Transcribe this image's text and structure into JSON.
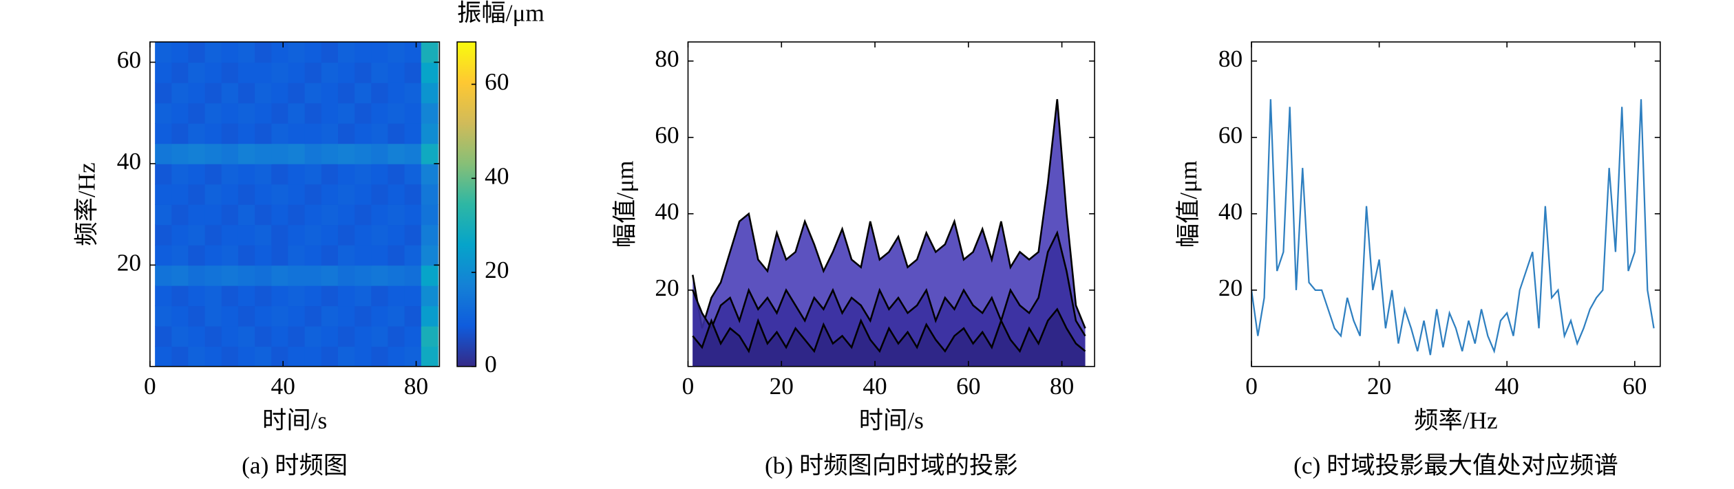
{
  "chart_data": [
    {
      "type": "heatmap",
      "caption": "(a) 时频图",
      "xlabel": "时间/s",
      "ylabel": "频率/Hz",
      "xlim": [
        0,
        87
      ],
      "ylim": [
        0,
        64
      ],
      "xticks": [
        0,
        40,
        80
      ],
      "yticks": [
        20,
        40,
        60
      ],
      "x": [
        4,
        9,
        14,
        19,
        24,
        29,
        34,
        39,
        44,
        49,
        54,
        59,
        64,
        69,
        74,
        79,
        84
      ],
      "y": [
        2,
        6,
        10,
        14,
        18,
        22,
        26,
        30,
        34,
        38,
        42,
        46,
        50,
        54,
        58,
        62
      ],
      "z": [
        [
          9,
          8,
          10,
          9,
          8,
          9,
          10,
          8,
          9,
          9,
          8,
          10,
          9,
          8,
          9,
          10,
          28
        ],
        [
          8,
          10,
          9,
          8,
          9,
          10,
          8,
          9,
          8,
          10,
          9,
          8,
          9,
          10,
          8,
          9,
          30
        ],
        [
          10,
          9,
          8,
          10,
          9,
          8,
          9,
          10,
          9,
          8,
          10,
          9,
          8,
          9,
          10,
          8,
          24
        ],
        [
          9,
          8,
          9,
          10,
          8,
          9,
          8,
          9,
          10,
          9,
          8,
          9,
          10,
          8,
          9,
          9,
          20
        ],
        [
          14,
          15,
          13,
          14,
          15,
          14,
          13,
          15,
          14,
          14,
          15,
          13,
          14,
          15,
          14,
          13,
          26
        ],
        [
          9,
          10,
          8,
          9,
          10,
          8,
          9,
          8,
          10,
          9,
          8,
          10,
          9,
          9,
          8,
          10,
          18
        ],
        [
          8,
          9,
          10,
          8,
          9,
          9,
          10,
          8,
          9,
          10,
          9,
          8,
          9,
          10,
          9,
          8,
          16
        ],
        [
          10,
          8,
          9,
          9,
          8,
          10,
          8,
          9,
          8,
          9,
          10,
          9,
          8,
          9,
          10,
          9,
          14
        ],
        [
          9,
          9,
          8,
          10,
          9,
          8,
          9,
          10,
          9,
          8,
          9,
          10,
          9,
          8,
          9,
          8,
          15
        ],
        [
          8,
          10,
          9,
          8,
          10,
          9,
          10,
          8,
          9,
          10,
          8,
          9,
          10,
          9,
          8,
          10,
          17
        ],
        [
          15,
          16,
          17,
          16,
          15,
          17,
          16,
          16,
          17,
          15,
          16,
          17,
          16,
          15,
          17,
          16,
          28
        ],
        [
          9,
          8,
          10,
          9,
          8,
          9,
          8,
          10,
          9,
          9,
          10,
          8,
          9,
          10,
          8,
          9,
          20
        ],
        [
          10,
          9,
          8,
          10,
          9,
          10,
          9,
          8,
          10,
          8,
          9,
          10,
          8,
          9,
          10,
          9,
          18
        ],
        [
          8,
          10,
          9,
          8,
          10,
          8,
          10,
          9,
          8,
          10,
          9,
          8,
          10,
          8,
          9,
          10,
          22
        ],
        [
          9,
          8,
          10,
          9,
          8,
          9,
          9,
          10,
          9,
          8,
          10,
          9,
          8,
          10,
          9,
          8,
          26
        ],
        [
          10,
          9,
          8,
          10,
          9,
          10,
          8,
          9,
          10,
          9,
          8,
          10,
          9,
          9,
          10,
          9,
          30
        ]
      ],
      "colormap": [
        "#352a87",
        "#0f5cdd",
        "#1481d6",
        "#06a4ca",
        "#2eb7a4",
        "#87bf77",
        "#d1bb59",
        "#fec832",
        "#f9fb0e"
      ],
      "colorbar": {
        "title": "振幅/μm",
        "clim": [
          0,
          69
        ],
        "ticks": [
          0,
          20,
          40,
          60
        ]
      }
    },
    {
      "type": "area",
      "caption": "(b) 时频图向时域的投影",
      "xlabel": "时间/s",
      "ylabel": "幅值/μm",
      "xlim": [
        0,
        87
      ],
      "ylim": [
        0,
        85
      ],
      "xticks": [
        0,
        20,
        40,
        60,
        80
      ],
      "yticks": [
        20,
        40,
        60,
        80
      ],
      "line_color": "#000000",
      "x": [
        1,
        3,
        5,
        7,
        9,
        11,
        13,
        15,
        17,
        19,
        21,
        23,
        25,
        27,
        29,
        31,
        33,
        35,
        37,
        39,
        41,
        43,
        45,
        47,
        49,
        51,
        53,
        55,
        57,
        59,
        61,
        63,
        65,
        67,
        69,
        71,
        73,
        75,
        77,
        79,
        81,
        83,
        85
      ],
      "series": [
        {
          "color": "#4a3fb8",
          "values": [
            24,
            10,
            18,
            22,
            30,
            38,
            40,
            28,
            25,
            35,
            28,
            30,
            38,
            32,
            25,
            30,
            36,
            28,
            26,
            38,
            28,
            30,
            34,
            26,
            28,
            35,
            30,
            32,
            38,
            28,
            30,
            36,
            28,
            38,
            26,
            30,
            28,
            30,
            48,
            70,
            40,
            16,
            10
          ]
        },
        {
          "color": "#3a30a0",
          "values": [
            20,
            14,
            10,
            16,
            18,
            12,
            20,
            15,
            18,
            14,
            20,
            16,
            12,
            18,
            15,
            20,
            14,
            18,
            16,
            12,
            20,
            15,
            18,
            14,
            16,
            20,
            12,
            18,
            15,
            20,
            16,
            14,
            18,
            12,
            20,
            16,
            14,
            18,
            30,
            35,
            25,
            12,
            8
          ]
        },
        {
          "color": "#2e2585",
          "values": [
            8,
            5,
            12,
            6,
            10,
            8,
            4,
            12,
            6,
            9,
            5,
            10,
            7,
            4,
            11,
            6,
            8,
            5,
            12,
            7,
            4,
            10,
            6,
            9,
            5,
            11,
            7,
            4,
            8,
            10,
            6,
            9,
            5,
            12,
            7,
            4,
            10,
            6,
            12,
            15,
            10,
            6,
            4
          ]
        }
      ]
    },
    {
      "type": "line",
      "caption": "(c) 时域投影最大值处对应频谱",
      "xlabel": "频率/Hz",
      "ylabel": "幅值/μm",
      "xlim": [
        0,
        64
      ],
      "ylim": [
        0,
        85
      ],
      "xticks": [
        0,
        20,
        40,
        60
      ],
      "yticks": [
        20,
        40,
        60,
        80
      ],
      "color": "#2e7fc0",
      "x": [
        0,
        1,
        2,
        3,
        4,
        5,
        6,
        7,
        8,
        9,
        10,
        11,
        12,
        13,
        14,
        15,
        16,
        17,
        18,
        19,
        20,
        21,
        22,
        23,
        24,
        25,
        26,
        27,
        28,
        29,
        30,
        31,
        32,
        33,
        34,
        35,
        36,
        37,
        38,
        39,
        40,
        41,
        42,
        43,
        44,
        45,
        46,
        47,
        48,
        49,
        50,
        51,
        52,
        53,
        54,
        55,
        56,
        57,
        58,
        59,
        60,
        61,
        62,
        63
      ],
      "values": [
        20,
        8,
        18,
        70,
        25,
        30,
        68,
        20,
        52,
        22,
        20,
        20,
        15,
        10,
        8,
        18,
        12,
        8,
        42,
        20,
        28,
        10,
        20,
        6,
        15,
        10,
        4,
        12,
        3,
        15,
        5,
        14,
        10,
        4,
        12,
        6,
        15,
        8,
        4,
        12,
        14,
        8,
        20,
        25,
        30,
        10,
        42,
        18,
        20,
        8,
        12,
        6,
        10,
        15,
        18,
        20,
        52,
        30,
        68,
        25,
        30,
        70,
        20,
        10
      ]
    }
  ]
}
